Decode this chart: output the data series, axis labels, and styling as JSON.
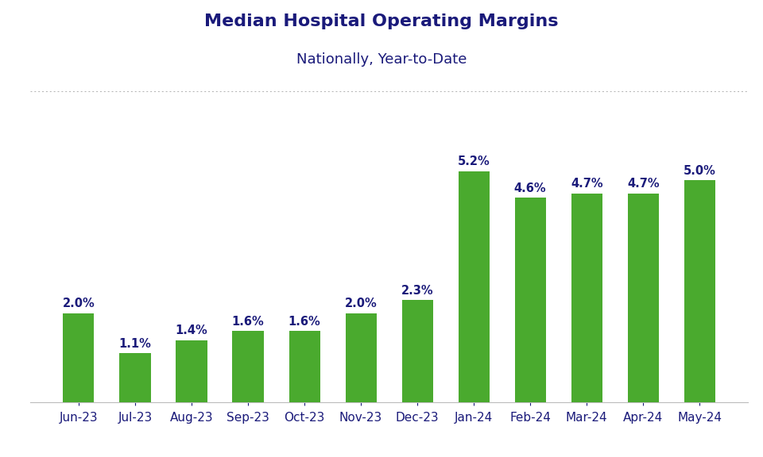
{
  "title": "Median Hospital Operating Margins",
  "subtitle": "Nationally, Year-to-Date",
  "categories": [
    "Jun-23",
    "Jul-23",
    "Aug-23",
    "Sep-23",
    "Oct-23",
    "Nov-23",
    "Dec-23",
    "Jan-24",
    "Feb-24",
    "Mar-24",
    "Apr-24",
    "May-24"
  ],
  "values": [
    2.0,
    1.1,
    1.4,
    1.6,
    1.6,
    2.0,
    2.3,
    5.2,
    4.6,
    4.7,
    4.7,
    5.0
  ],
  "bar_color": "#4aaa2e",
  "title_color": "#1a1a7a",
  "subtitle_color": "#1a1a7a",
  "label_color": "#1a1a7a",
  "tick_color": "#1a1a7a",
  "background_color": "#ffffff",
  "grid_color": "#b0b0b0",
  "title_fontsize": 16,
  "subtitle_fontsize": 13,
  "label_fontsize": 10.5,
  "tick_fontsize": 11,
  "ylim": [
    0,
    7.0
  ],
  "bar_width": 0.55
}
